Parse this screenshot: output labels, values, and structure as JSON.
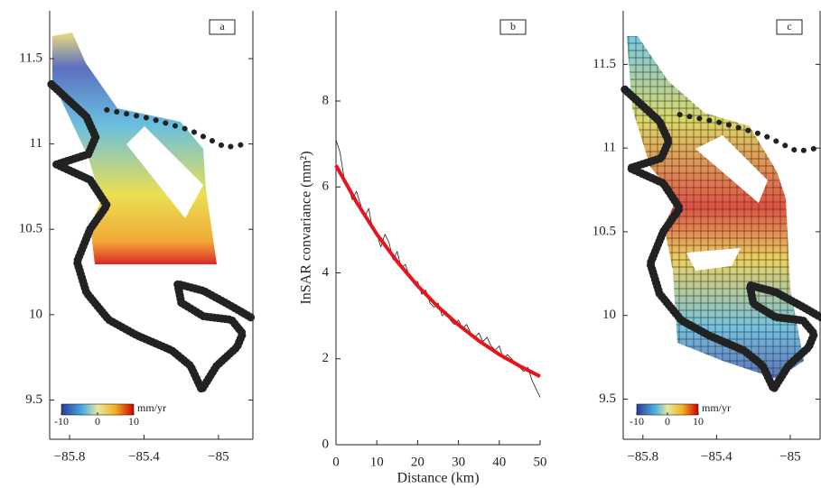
{
  "chart_data": [
    {
      "type": "map",
      "label": "a",
      "xlim": [
        -85.907,
        -84.815
      ],
      "ylim": [
        9.27,
        11.78
      ],
      "xticks": [
        {
          "value": -85.8,
          "label": "−85.8"
        },
        {
          "value": -85.4,
          "label": "−85.4"
        },
        {
          "value": -85,
          "label": "−85"
        }
      ],
      "yticks": [
        9.5,
        10,
        10.5,
        11,
        11.5
      ],
      "colorbar": {
        "lim": [
          -10,
          10
        ],
        "ticks": [
          {
            "value": -10,
            "label": "-10"
          },
          0,
          10
        ],
        "unit": "mm/yr"
      },
      "coastline": {
        "lon": [
          -85.898,
          -85.71,
          -85.66,
          -85.7,
          -85.87,
          -85.69,
          -85.6,
          -85.69,
          -85.76,
          -85.71,
          -85.59,
          -85.44,
          -85.25,
          -85.15,
          -85.09,
          -85.01,
          -84.9,
          -84.87,
          -84.93,
          -85.08,
          -85.2,
          -85.22,
          -85.08,
          -84.93,
          -84.82
        ],
        "lat": [
          11.35,
          11.16,
          11.04,
          10.94,
          10.88,
          10.79,
          10.64,
          10.5,
          10.31,
          10.13,
          9.97,
          9.88,
          9.79,
          9.7,
          9.56,
          9.7,
          9.81,
          9.89,
          9.97,
          9.99,
          10.07,
          10.18,
          10.14,
          10.05,
          9.98
        ]
      },
      "boundary": {
        "lon": [
          -85.6,
          -85.37,
          -85.15,
          -84.96,
          -84.85
        ],
        "lat": [
          11.2,
          11.15,
          11.08,
          10.98,
          11.0
        ]
      }
    },
    {
      "type": "line",
      "label": "b",
      "x_label": "Distance (km)",
      "y_label": "InSAR convariance (mm²)",
      "xlim": [
        0,
        50
      ],
      "ylim": [
        0,
        10.1
      ],
      "xticks": [
        0,
        10,
        20,
        30,
        40,
        50
      ],
      "yticks": [
        0,
        2,
        4,
        6,
        8
      ],
      "series": [
        {
          "color": "#222222",
          "width": 0.8,
          "x": [
            0,
            1,
            2,
            3,
            4,
            5,
            6,
            7,
            8,
            9,
            10,
            11,
            12,
            13,
            14,
            15,
            16,
            17,
            18,
            19,
            20,
            21,
            22,
            23,
            24,
            25,
            26,
            27,
            28,
            29,
            30,
            31,
            32,
            33,
            34,
            35,
            36,
            37,
            38,
            39,
            40,
            41,
            42,
            43,
            44,
            45,
            46,
            47,
            48,
            49,
            50
          ],
          "values": [
            7.1,
            6.8,
            6.2,
            6.0,
            5.7,
            5.9,
            5.6,
            5.3,
            5.5,
            5.0,
            4.9,
            4.6,
            4.9,
            4.7,
            4.3,
            4.5,
            4.1,
            4.2,
            3.9,
            3.8,
            3.8,
            3.5,
            3.6,
            3.3,
            3.2,
            3.3,
            3.0,
            3.1,
            2.9,
            2.8,
            2.9,
            2.7,
            2.8,
            2.6,
            2.5,
            2.6,
            2.4,
            2.5,
            2.3,
            2.2,
            2.3,
            2.0,
            2.1,
            2.0,
            1.9,
            1.8,
            1.7,
            1.8,
            1.5,
            1.3,
            1.1
          ]
        },
        {
          "color": "#e8141b",
          "width": 4,
          "x": [
            0,
            5,
            10,
            15,
            20,
            25,
            30,
            35,
            40,
            45,
            50
          ],
          "values": [
            6.5,
            5.65,
            4.9,
            4.26,
            3.7,
            3.21,
            2.79,
            2.42,
            2.1,
            1.83,
            1.59
          ]
        }
      ]
    },
    {
      "type": "map",
      "label": "c",
      "xlim": [
        -85.907,
        -84.838
      ],
      "ylim": [
        9.26,
        11.82
      ],
      "xticks": [
        {
          "value": -85.8,
          "label": "−85.8"
        },
        {
          "value": -85.4,
          "label": "−85.4"
        },
        {
          "value": -85,
          "label": "−85"
        }
      ],
      "yticks": [
        9.5,
        10,
        10.5,
        11,
        11.5
      ],
      "colorbar": {
        "lim": [
          -10,
          10
        ],
        "ticks": [
          {
            "value": -10,
            "label": "-10"
          },
          0,
          10
        ],
        "unit": "mm/yr"
      },
      "coastline": {
        "lon": [
          -85.898,
          -85.71,
          -85.66,
          -85.7,
          -85.87,
          -85.69,
          -85.6,
          -85.69,
          -85.76,
          -85.71,
          -85.59,
          -85.44,
          -85.25,
          -85.15,
          -85.09,
          -85.01,
          -84.9,
          -84.87,
          -84.93,
          -85.08,
          -85.2,
          -85.22,
          -85.08,
          -84.93,
          -84.82
        ],
        "lat": [
          11.35,
          11.16,
          11.04,
          10.94,
          10.88,
          10.79,
          10.64,
          10.5,
          10.31,
          10.13,
          9.97,
          9.88,
          9.79,
          9.7,
          9.56,
          9.7,
          9.81,
          9.89,
          9.97,
          9.99,
          10.07,
          10.18,
          10.14,
          10.05,
          9.98
        ]
      },
      "boundary": {
        "lon": [
          -85.6,
          -85.37,
          -85.15,
          -84.96,
          -84.85
        ],
        "lat": [
          11.2,
          11.15,
          11.08,
          10.98,
          11.0
        ]
      }
    }
  ]
}
